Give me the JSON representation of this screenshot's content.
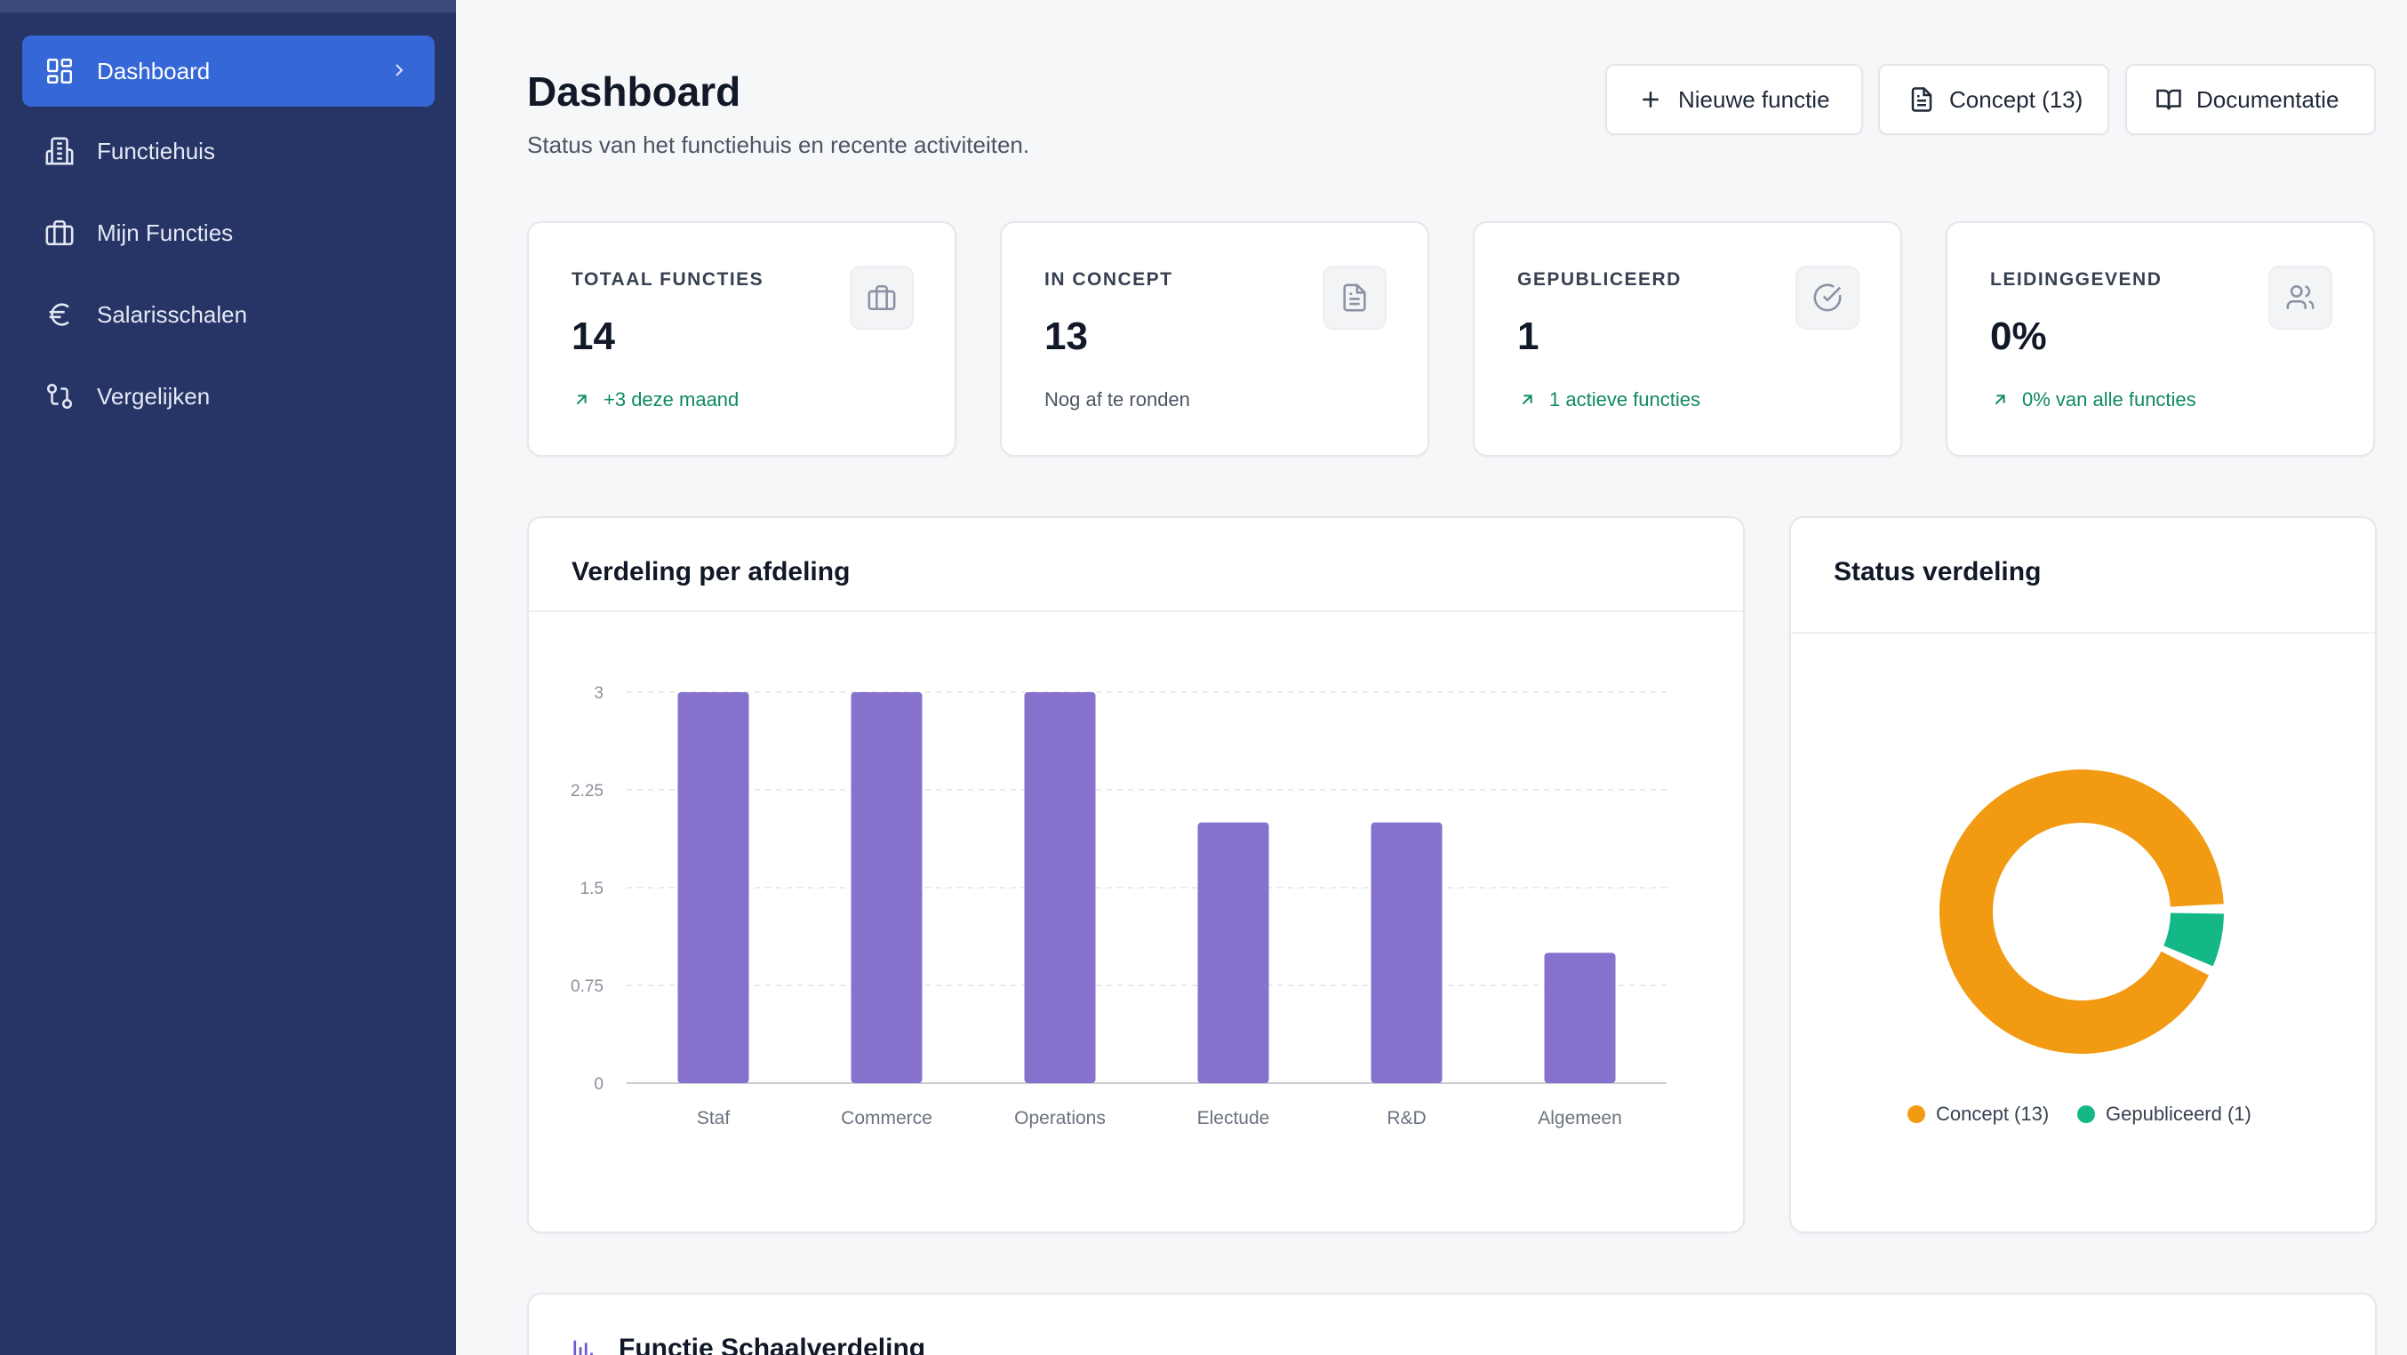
{
  "sidebar": {
    "items": [
      {
        "label": "Dashboard",
        "icon": "dashboard-grid-icon",
        "active": true
      },
      {
        "label": "Functiehuis",
        "icon": "building-icon"
      },
      {
        "label": "Mijn Functies",
        "icon": "briefcase-icon"
      },
      {
        "label": "Salarisschalen",
        "icon": "euro-icon"
      },
      {
        "label": "Vergelijken",
        "icon": "compare-icon"
      }
    ]
  },
  "header": {
    "title": "Dashboard",
    "subtitle": "Status van het functiehuis en recente activiteiten.",
    "buttons": {
      "new": "Nieuwe functie",
      "concept": "Concept (13)",
      "docs": "Documentatie"
    }
  },
  "stats": [
    {
      "label": "TOTAAL FUNCTIES",
      "value": "14",
      "foot": "+3 deze maand",
      "trend": "up",
      "icon": "briefcase-icon"
    },
    {
      "label": "IN CONCEPT",
      "value": "13",
      "foot": "Nog af te ronden",
      "trend": "none",
      "icon": "document-icon"
    },
    {
      "label": "GEPUBLICEERD",
      "value": "1",
      "foot": "1 actieve functies",
      "trend": "up",
      "icon": "check-circle-icon"
    },
    {
      "label": "LEIDINGGEVEND",
      "value": "0%",
      "foot": "0% van alle functies",
      "trend": "up",
      "icon": "users-icon"
    }
  ],
  "bar_card": {
    "title": "Verdeling per afdeling"
  },
  "donut_card": {
    "title": "Status verdeling"
  },
  "bottom_card": {
    "title": "Functie Schaalverdeling"
  },
  "colors": {
    "bar": "#8672cc",
    "concept": "#f29a12",
    "gepubliceerd": "#13b886",
    "accent": "#3567d6",
    "sidebar": "#273566"
  },
  "chart_data": [
    {
      "type": "bar",
      "title": "Verdeling per afdeling",
      "categories": [
        "Staf",
        "Commerce",
        "Operations",
        "Electude",
        "R&D",
        "Algemeen"
      ],
      "values": [
        3,
        3,
        3,
        2,
        2,
        1
      ],
      "yticks": [
        "0",
        "0.75",
        "1.5",
        "2.25",
        "3"
      ],
      "ylim": [
        0,
        3
      ],
      "grid": true
    },
    {
      "type": "pie",
      "title": "Status verdeling",
      "categories": [
        "Concept (13)",
        "Gepubliceerd (1)"
      ],
      "values": [
        13,
        1
      ],
      "legend": "bottom"
    }
  ]
}
